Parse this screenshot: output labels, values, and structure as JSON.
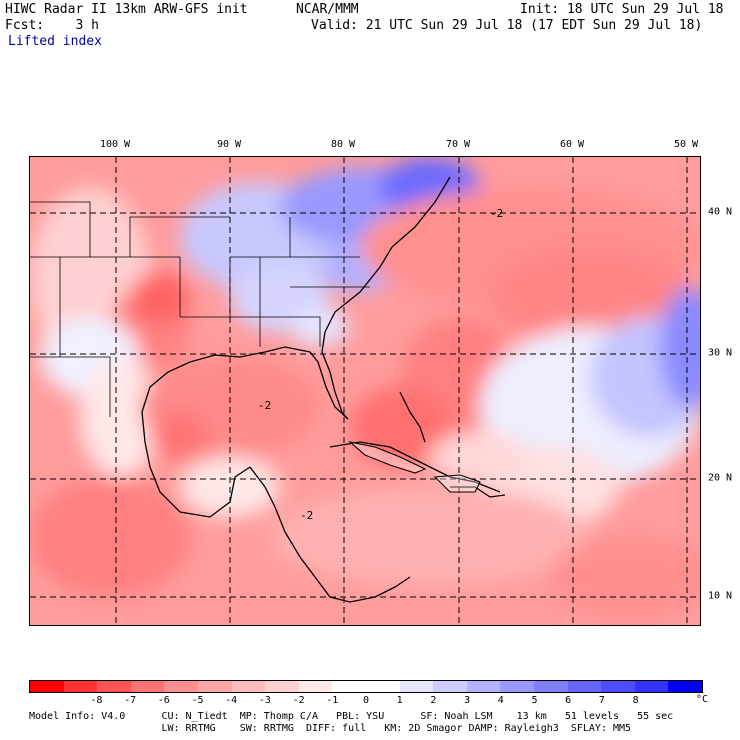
{
  "header": {
    "line1_left": "HIWC Radar II 13km ARW-GFS init",
    "line1_mid": "NCAR/MMM",
    "line1_right": "Init: 18 UTC Sun 29 Jul 18",
    "line2_left": "Fcst:    3 h",
    "line2_right": "Valid: 21 UTC Sun 29 Jul 18 (17 EDT Sun 29 Jul 18)",
    "line3_left": "Lifted index"
  },
  "map": {
    "longitudes": [
      "100 W",
      "90 W",
      "80 W",
      "70 W",
      "60 W",
      "50 W"
    ],
    "latitudes": [
      "40 N",
      "30 N",
      "20 N",
      "10 N"
    ],
    "contour_labels": [
      "-2",
      "-2",
      "-2"
    ]
  },
  "colorbar": {
    "colors": [
      "#ff0000",
      "#ff3333",
      "#ff5555",
      "#ff7373",
      "#ff8f8f",
      "#ffa5a5",
      "#ffbcbc",
      "#ffd2d2",
      "#ffe8e8",
      "#ffffff",
      "#ffffff",
      "#e6e6ff",
      "#cdcdff",
      "#b3b3ff",
      "#9999ff",
      "#8080ff",
      "#6666ff",
      "#4d4dff",
      "#3333ff",
      "#0000ee"
    ],
    "ticks": [
      "-8",
      "-7",
      "-6",
      "-5",
      "-4",
      "-3",
      "-2",
      "-1",
      "0",
      "1",
      "2",
      "3",
      "4",
      "5",
      "6",
      "7",
      "8"
    ],
    "unit": "°C"
  },
  "model_info": {
    "line1": "Model Info: V4.0      CU: N_Tiedt  MP: Thomp C/A   PBL: YSU      SF: Noah LSM    13 km   51 levels   55 sec",
    "line2": "                      LW: RRTMG    SW: RRTMG  DIFF: full   KM: 2D Smagor DAMP: Rayleigh3  SFLAY: MM5"
  }
}
